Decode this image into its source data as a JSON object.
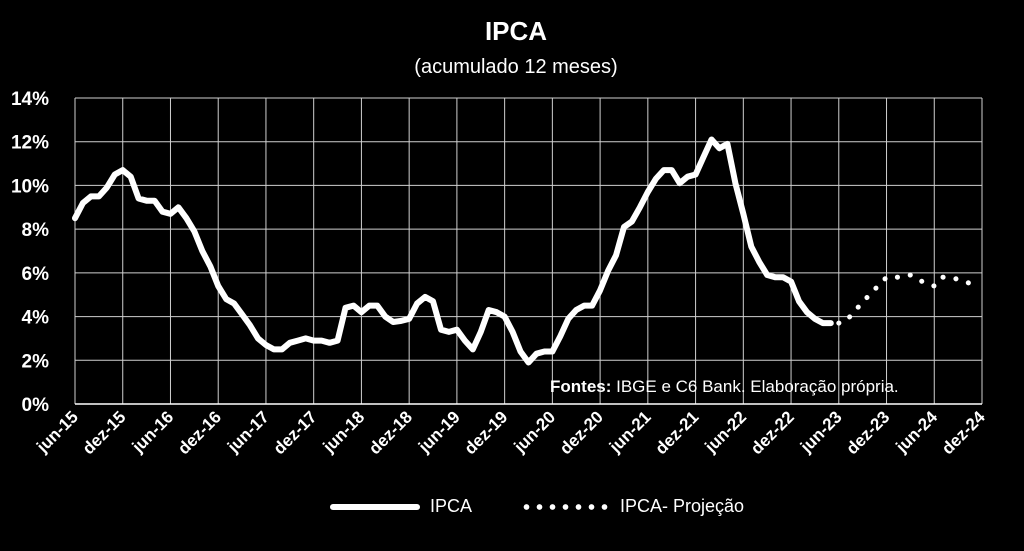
{
  "chart_data": {
    "type": "line",
    "title": "IPCA",
    "subtitle": "(acumulado 12 meses)",
    "y_ticks": [
      "0%",
      "2%",
      "4%",
      "6%",
      "8%",
      "10%",
      "12%",
      "14%"
    ],
    "ylim": [
      0,
      14
    ],
    "x_ticks": [
      "jun-15",
      "dez-15",
      "jun-16",
      "dez-16",
      "jun-17",
      "dez-17",
      "jun-18",
      "dez-18",
      "jun-19",
      "dez-19",
      "jun-20",
      "dez-20",
      "jun-21",
      "dez-21",
      "jun-22",
      "dez-22",
      "jun-23",
      "dez-23",
      "jun-24",
      "dez-24"
    ],
    "x_start": "jun-15",
    "x_end": "dez-24",
    "grid": true,
    "annotation_bold": "Fontes:",
    "annotation_text": " IBGE e C6 Bank. Elaboração própria.",
    "series": [
      {
        "name": "IPCA",
        "style": "solid",
        "color": "#ffffff",
        "start": "jun-15",
        "values": [
          8.5,
          9.2,
          9.5,
          9.5,
          9.9,
          10.5,
          10.7,
          10.4,
          9.4,
          9.3,
          9.3,
          8.8,
          8.7,
          9.0,
          8.5,
          7.9,
          7.0,
          6.3,
          5.4,
          4.8,
          4.6,
          4.1,
          3.6,
          3.0,
          2.7,
          2.5,
          2.5,
          2.8,
          2.9,
          3.0,
          2.9,
          2.9,
          2.8,
          2.9,
          4.4,
          4.5,
          4.2,
          4.5,
          4.5,
          4.0,
          3.75,
          3.8,
          3.9,
          4.6,
          4.9,
          4.7,
          3.4,
          3.3,
          3.4,
          2.9,
          2.5,
          3.3,
          4.3,
          4.2,
          4.0,
          3.3,
          2.4,
          1.9,
          2.3,
          2.4,
          2.4,
          3.1,
          3.9,
          4.3,
          4.5,
          4.5,
          5.2,
          6.1,
          6.8,
          8.1,
          8.35,
          9.0,
          9.7,
          10.3,
          10.7,
          10.7,
          10.1,
          10.4,
          10.5,
          11.3,
          12.1,
          11.7,
          11.9,
          10.1,
          8.7,
          7.2,
          6.5,
          5.9,
          5.8,
          5.8,
          5.6,
          4.7,
          4.2,
          3.9,
          3.7,
          3.7
        ]
      },
      {
        "name": "IPCA- Projeção",
        "style": "dotted",
        "color": "#ffffff",
        "start": "jun-23",
        "values": [
          3.7,
          3.8,
          4.3,
          4.6,
          5.1,
          5.4,
          5.8,
          5.8,
          5.8,
          5.9,
          5.7,
          5.5,
          5.4,
          5.8,
          5.8,
          5.7,
          5.6,
          5.4
        ]
      }
    ]
  },
  "legend": {
    "solid_label": "IPCA",
    "dotted_label": "IPCA- Projeção"
  }
}
